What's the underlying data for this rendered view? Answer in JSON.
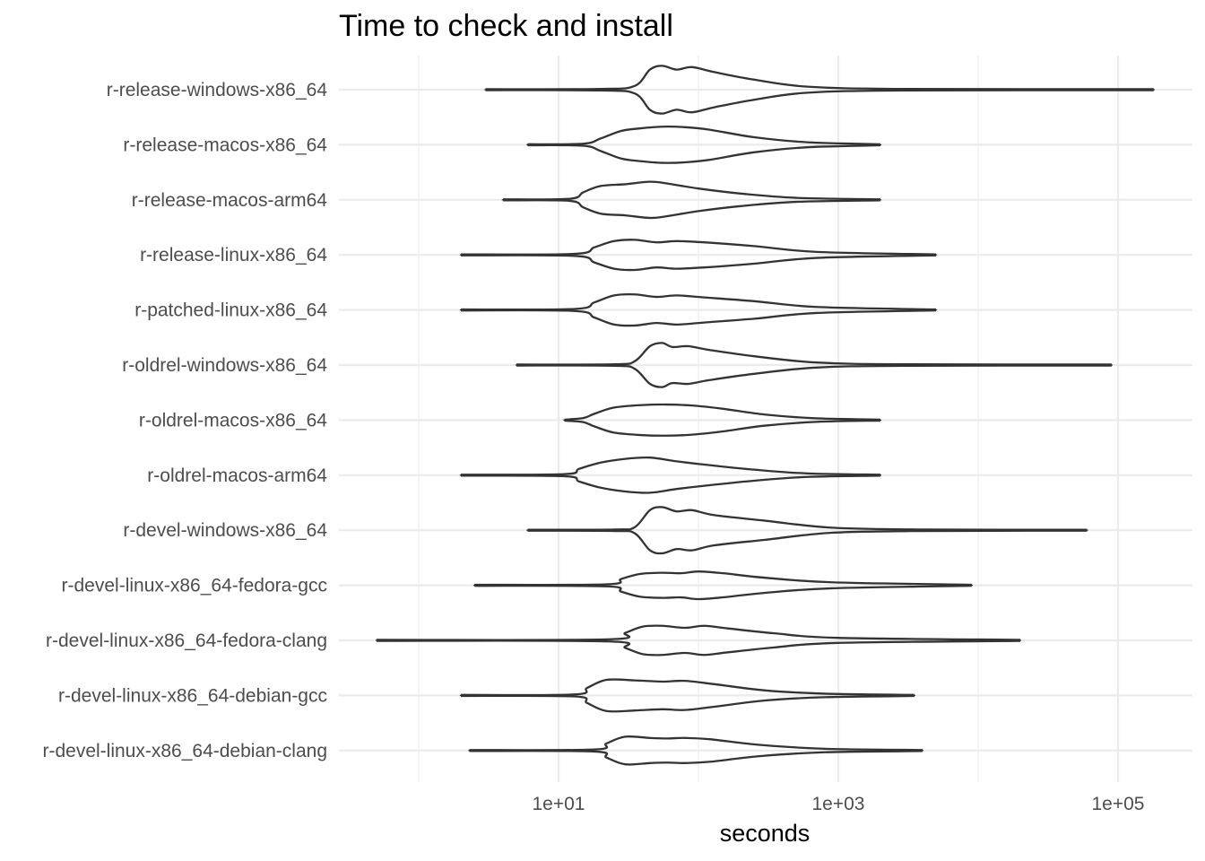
{
  "chart_data": {
    "type": "violin",
    "title": "Time to check and install",
    "xlabel": "seconds",
    "ylabel": "",
    "x_scale": "log10",
    "xlim": [
      0.3,
      250000
    ],
    "x_ticks": [
      {
        "value": 10,
        "label": "1e+01"
      },
      {
        "value": 1000,
        "label": "1e+03"
      },
      {
        "value": 100000,
        "label": "1e+05"
      }
    ],
    "x_minor_ticks": [
      1,
      100,
      10000
    ],
    "grid": true,
    "categories": [
      "r-release-windows-x86_64",
      "r-release-macos-x86_64",
      "r-release-macos-arm64",
      "r-release-linux-x86_64",
      "r-patched-linux-x86_64",
      "r-oldrel-windows-x86_64",
      "r-oldrel-macos-x86_64",
      "r-oldrel-macos-arm64",
      "r-devel-windows-x86_64",
      "r-devel-linux-x86_64-fedora-gcc",
      "r-devel-linux-x86_64-fedora-clang",
      "r-devel-linux-x86_64-debian-gcc",
      "r-devel-linux-x86_64-debian-clang"
    ],
    "series": [
      {
        "category": "r-release-windows-x86_64",
        "min": 3,
        "max": 180000,
        "density": [
          [
            3,
            0.02
          ],
          [
            20,
            0.03
          ],
          [
            35,
            0.15
          ],
          [
            45,
            0.8
          ],
          [
            55,
            0.95
          ],
          [
            70,
            0.8
          ],
          [
            90,
            0.9
          ],
          [
            130,
            0.7
          ],
          [
            250,
            0.4
          ],
          [
            600,
            0.12
          ],
          [
            3000,
            0.03
          ],
          [
            180000,
            0.02
          ]
        ]
      },
      {
        "category": "r-release-macos-x86_64",
        "min": 6,
        "max": 2000,
        "density": [
          [
            6,
            0.02
          ],
          [
            15,
            0.04
          ],
          [
            20,
            0.25
          ],
          [
            28,
            0.55
          ],
          [
            38,
            0.65
          ],
          [
            55,
            0.72
          ],
          [
            80,
            0.7
          ],
          [
            120,
            0.6
          ],
          [
            250,
            0.3
          ],
          [
            600,
            0.1
          ],
          [
            2000,
            0.02
          ]
        ]
      },
      {
        "category": "r-release-macos-arm64",
        "min": 4,
        "max": 2000,
        "density": [
          [
            4,
            0.02
          ],
          [
            12,
            0.04
          ],
          [
            15,
            0.3
          ],
          [
            20,
            0.55
          ],
          [
            30,
            0.62
          ],
          [
            45,
            0.72
          ],
          [
            60,
            0.65
          ],
          [
            100,
            0.45
          ],
          [
            200,
            0.25
          ],
          [
            500,
            0.08
          ],
          [
            2000,
            0.02
          ]
        ]
      },
      {
        "category": "r-release-linux-x86_64",
        "min": 2,
        "max": 5000,
        "density": [
          [
            2,
            0.02
          ],
          [
            13,
            0.04
          ],
          [
            18,
            0.3
          ],
          [
            25,
            0.55
          ],
          [
            35,
            0.6
          ],
          [
            50,
            0.5
          ],
          [
            70,
            0.55
          ],
          [
            110,
            0.5
          ],
          [
            250,
            0.35
          ],
          [
            700,
            0.12
          ],
          [
            5000,
            0.02
          ]
        ]
      },
      {
        "category": "r-patched-linux-x86_64",
        "min": 2,
        "max": 5000,
        "density": [
          [
            2,
            0.02
          ],
          [
            13,
            0.04
          ],
          [
            18,
            0.3
          ],
          [
            25,
            0.58
          ],
          [
            35,
            0.62
          ],
          [
            50,
            0.52
          ],
          [
            70,
            0.58
          ],
          [
            110,
            0.5
          ],
          [
            250,
            0.35
          ],
          [
            700,
            0.12
          ],
          [
            5000,
            0.02
          ]
        ]
      },
      {
        "category": "r-oldrel-windows-x86_64",
        "min": 5,
        "max": 90000,
        "density": [
          [
            5,
            0.02
          ],
          [
            25,
            0.03
          ],
          [
            35,
            0.15
          ],
          [
            45,
            0.75
          ],
          [
            55,
            0.88
          ],
          [
            65,
            0.72
          ],
          [
            85,
            0.75
          ],
          [
            120,
            0.6
          ],
          [
            250,
            0.35
          ],
          [
            700,
            0.1
          ],
          [
            3000,
            0.03
          ],
          [
            90000,
            0.02
          ]
        ]
      },
      {
        "category": "r-oldrel-macos-x86_64",
        "min": 11,
        "max": 2000,
        "density": [
          [
            11,
            0.02
          ],
          [
            15,
            0.08
          ],
          [
            18,
            0.25
          ],
          [
            25,
            0.5
          ],
          [
            40,
            0.6
          ],
          [
            60,
            0.62
          ],
          [
            90,
            0.58
          ],
          [
            150,
            0.45
          ],
          [
            300,
            0.22
          ],
          [
            700,
            0.07
          ],
          [
            2000,
            0.02
          ]
        ]
      },
      {
        "category": "r-oldrel-macos-arm64",
        "min": 2,
        "max": 2000,
        "density": [
          [
            2,
            0.02
          ],
          [
            11,
            0.04
          ],
          [
            14,
            0.25
          ],
          [
            20,
            0.5
          ],
          [
            30,
            0.65
          ],
          [
            45,
            0.7
          ],
          [
            70,
            0.55
          ],
          [
            120,
            0.4
          ],
          [
            250,
            0.22
          ],
          [
            600,
            0.07
          ],
          [
            2000,
            0.02
          ]
        ]
      },
      {
        "category": "r-devel-windows-x86_64",
        "min": 6,
        "max": 60000,
        "density": [
          [
            6,
            0.02
          ],
          [
            25,
            0.03
          ],
          [
            35,
            0.12
          ],
          [
            45,
            0.8
          ],
          [
            55,
            0.92
          ],
          [
            70,
            0.75
          ],
          [
            90,
            0.8
          ],
          [
            130,
            0.6
          ],
          [
            300,
            0.38
          ],
          [
            900,
            0.1
          ],
          [
            4000,
            0.03
          ],
          [
            60000,
            0.02
          ]
        ]
      },
      {
        "category": "r-devel-linux-x86_64-fedora-gcc",
        "min": 2.5,
        "max": 9000,
        "density": [
          [
            2.5,
            0.02
          ],
          [
            22,
            0.04
          ],
          [
            28,
            0.25
          ],
          [
            38,
            0.45
          ],
          [
            55,
            0.5
          ],
          [
            75,
            0.48
          ],
          [
            100,
            0.55
          ],
          [
            150,
            0.48
          ],
          [
            300,
            0.3
          ],
          [
            900,
            0.12
          ],
          [
            9000,
            0.02
          ]
        ]
      },
      {
        "category": "r-devel-linux-x86_64-fedora-clang",
        "min": 0.5,
        "max": 20000,
        "density": [
          [
            0.5,
            0.02
          ],
          [
            22,
            0.04
          ],
          [
            30,
            0.3
          ],
          [
            40,
            0.55
          ],
          [
            55,
            0.58
          ],
          [
            80,
            0.5
          ],
          [
            110,
            0.58
          ],
          [
            160,
            0.48
          ],
          [
            350,
            0.28
          ],
          [
            1000,
            0.1
          ],
          [
            20000,
            0.02
          ]
        ]
      },
      {
        "category": "r-devel-linux-x86_64-debian-gcc",
        "min": 2,
        "max": 3500,
        "density": [
          [
            2,
            0.02
          ],
          [
            13,
            0.04
          ],
          [
            16,
            0.3
          ],
          [
            22,
            0.62
          ],
          [
            35,
            0.6
          ],
          [
            55,
            0.55
          ],
          [
            80,
            0.58
          ],
          [
            130,
            0.45
          ],
          [
            300,
            0.2
          ],
          [
            800,
            0.07
          ],
          [
            3500,
            0.02
          ]
        ]
      },
      {
        "category": "r-devel-linux-x86_64-debian-clang",
        "min": 2.3,
        "max": 4000,
        "density": [
          [
            2.3,
            0.02
          ],
          [
            18,
            0.04
          ],
          [
            22,
            0.28
          ],
          [
            30,
            0.55
          ],
          [
            45,
            0.5
          ],
          [
            60,
            0.48
          ],
          [
            80,
            0.5
          ],
          [
            120,
            0.45
          ],
          [
            280,
            0.22
          ],
          [
            800,
            0.07
          ],
          [
            4000,
            0.02
          ]
        ]
      }
    ]
  }
}
